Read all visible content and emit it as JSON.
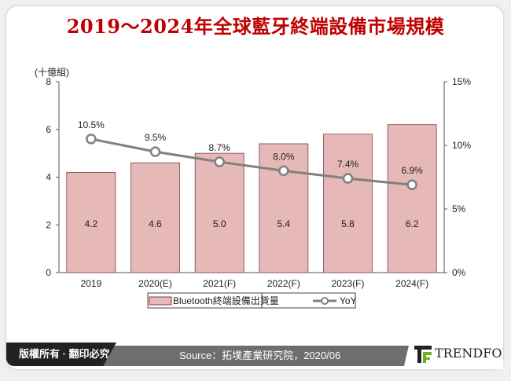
{
  "title": "2019～2024年全球藍牙終端設備市場規模",
  "footer": {
    "copyright": "版權所有 · 翻印必究",
    "source": "Source：拓墣產業研究院，2020/06",
    "logo": "TRENDFORCE"
  },
  "colors": {
    "title": "#c00000",
    "bar": "#e6b8b8",
    "bar_border": "#7f3f3f",
    "line": "#808080"
  },
  "chart_data": {
    "type": "bar+line",
    "title": "2019～2024年全球藍牙終端設備市場規模",
    "ylabel": "(十億組)",
    "categories": [
      "2019",
      "2020(E)",
      "2021(F)",
      "2022(F)",
      "2023(F)",
      "2024(F)"
    ],
    "ylim": [
      0,
      8
    ],
    "yticks": [
      "0",
      "2",
      "4",
      "6",
      "8"
    ],
    "y2lim": [
      0,
      15
    ],
    "y2ticks": [
      "0%",
      "5%",
      "10%",
      "15%"
    ],
    "series": [
      {
        "name": "Bluetooth終端設備出貨量",
        "type": "bar",
        "axis": "left",
        "values": [
          4.2,
          4.6,
          5.0,
          5.4,
          5.8,
          6.2
        ],
        "labels": [
          "4.2",
          "4.6",
          "5.0",
          "5.4",
          "5.8",
          "6.2"
        ]
      },
      {
        "name": "YoY",
        "type": "line",
        "axis": "right",
        "values": [
          10.5,
          9.5,
          8.7,
          8.0,
          7.4,
          6.9
        ],
        "labels": [
          "10.5%",
          "9.5%",
          "8.7%",
          "8.0%",
          "7.4%",
          "6.9%"
        ]
      }
    ],
    "legend": "bottom",
    "grid": false
  }
}
